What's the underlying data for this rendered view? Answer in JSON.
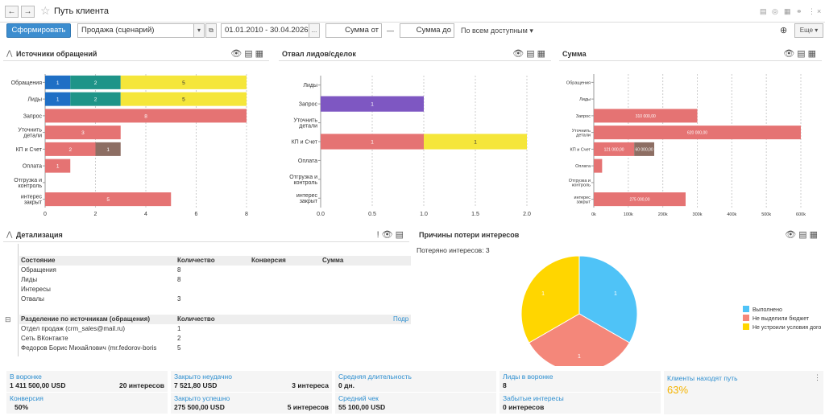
{
  "window": {
    "title": "Путь клиента",
    "back": "←",
    "fwd": "→"
  },
  "toolbar": {
    "form_button": "Сформировать",
    "scenario": "Продажа (сценарий)",
    "period": "01.01.2010 - 30.04.2026",
    "period_btn": "...",
    "sum_from": "Сумма от",
    "dash": "—",
    "sum_to": "Сумма до",
    "access": "По всем доступным ▾",
    "more": "Еще ▾"
  },
  "panels": {
    "sources": "Источники обращений",
    "dropoff": "Отвал лидов/сделок",
    "sum": "Сумма",
    "details": "Детализация",
    "reasons": "Причины потери интересов"
  },
  "chart_data": [
    {
      "type": "bar",
      "orientation": "horizontal",
      "stacked": true,
      "title": "Источники обращений",
      "categories": [
        "Обращения",
        "Лиды",
        "Запрос",
        "Уточнить детали",
        "КП и Счет",
        "Оплата",
        "Отгрузка и контроль",
        "интерес закрыт"
      ],
      "series": [
        {
          "color": "#1f6fc5",
          "values": [
            1,
            1,
            0,
            0,
            0,
            0,
            0,
            0
          ]
        },
        {
          "color": "#1e9488",
          "values": [
            2,
            2,
            0,
            0,
            0,
            0,
            0,
            0
          ]
        },
        {
          "color": "#f5e63a",
          "values": [
            5,
            5,
            0,
            0,
            0,
            0,
            0,
            0
          ]
        },
        {
          "color": "#e57373",
          "values": [
            0,
            0,
            8,
            3,
            2,
            1,
            0,
            5
          ]
        },
        {
          "color": "#8d6e63",
          "values": [
            0,
            0,
            0,
            0,
            1,
            0,
            0,
            0
          ]
        }
      ],
      "xlim": [
        0,
        8
      ],
      "xticks": [
        "0",
        "2",
        "4",
        "6",
        "8"
      ]
    },
    {
      "type": "bar",
      "orientation": "horizontal",
      "stacked": true,
      "title": "Отвал лидов/сделок",
      "categories": [
        "Лиды",
        "Запрос",
        "Уточнить детали",
        "КП и Счет",
        "Оплата",
        "Отгрузка и контроль",
        "интерес закрыт"
      ],
      "series": [
        {
          "color": "#7e57c2",
          "values": [
            0,
            1,
            0,
            0,
            0,
            0,
            0
          ]
        },
        {
          "color": "#e57373",
          "values": [
            0,
            0,
            0,
            1,
            0,
            0,
            0
          ]
        },
        {
          "color": "#f5e63a",
          "values": [
            0,
            0,
            0,
            1,
            0,
            0,
            0
          ]
        }
      ],
      "xlim": [
        0,
        2
      ],
      "xticks": [
        "0.0",
        "0.5",
        "1.0",
        "1.5",
        "2.0"
      ]
    },
    {
      "type": "bar",
      "orientation": "horizontal",
      "stacked": true,
      "title": "Сумма",
      "categories": [
        "Обращения",
        "Лиды",
        "Запрос",
        "Уточнить детали",
        "КП и Счет",
        "Оплата",
        "Отгрузка и контроль",
        "интерес закрыт"
      ],
      "series": [
        {
          "color": "#e57373",
          "values": [
            0,
            0,
            310000,
            620000,
            121000,
            25000,
            0,
            275000
          ],
          "labels": [
            "",
            "",
            "310 000,00",
            "620 000,00",
            "121 000,00",
            "",
            "",
            "275 000,00"
          ]
        },
        {
          "color": "#8d6e63",
          "values": [
            0,
            0,
            0,
            0,
            60000,
            0,
            0,
            0
          ],
          "labels": [
            "",
            "",
            "",
            "",
            "60 000,00",
            "",
            "",
            ""
          ]
        }
      ],
      "xlim": [
        0,
        620000
      ],
      "xticks": [
        "0k",
        "100k",
        "200k",
        "300k",
        "400k",
        "500k",
        "600k"
      ]
    },
    {
      "type": "pie",
      "title": "Причины потери интересов",
      "slices": [
        {
          "label": "Выполнено",
          "value": 1,
          "color": "#4fc3f7"
        },
        {
          "label": "Не выделили бюджет",
          "value": 1,
          "color": "#f4877a"
        },
        {
          "label": "Не устроили условия дого",
          "value": 1,
          "color": "#ffd600"
        }
      ]
    }
  ],
  "details": {
    "header": [
      "Состояние",
      "Количество",
      "Конверсия",
      "Сумма"
    ],
    "rows": [
      [
        "Обращения",
        "8"
      ],
      [
        "Лиды",
        "8"
      ],
      [
        "Интересы",
        ""
      ],
      [
        "Отвалы",
        "3"
      ]
    ],
    "header2": [
      "Разделение по источникам (обращения)",
      "Количество"
    ],
    "link": "Подр",
    "rows2": [
      [
        "Отдел продаж (crm_sales@mail.ru)",
        "1"
      ],
      [
        "Сеть ВКонтакте",
        "2"
      ],
      [
        "Федоров Борис Михайлович (mr.fedorov-boris",
        "5"
      ]
    ]
  },
  "reasons": {
    "lost": "Потеряно интересов: 3",
    "pie_labels": [
      "1",
      "1",
      "1"
    ]
  },
  "kpis": [
    {
      "label": "В воронке",
      "value": "1 411 500,00 USD",
      "sub": "20 интересов"
    },
    {
      "label": "Закрыто неудачно",
      "value": "7 521,80 USD",
      "sub": "3 интереса"
    },
    {
      "label": "Средняя длительность",
      "value": "0 дн.",
      "sub": ""
    },
    {
      "label": "Лиды в воронке",
      "value": "8",
      "sub": ""
    },
    {
      "label": "Конверсия",
      "value": "50%",
      "sub": ""
    },
    {
      "label": "Закрыто успешно",
      "value": "275 500,00 USD",
      "sub": "5 интересов"
    },
    {
      "label": "Средний чек",
      "value": "55 100,00 USD",
      "sub": ""
    },
    {
      "label": "Забытые интересы",
      "value": "0 интересов",
      "sub": ""
    }
  ],
  "path_kpi": {
    "label": "Клиенты находят путь",
    "value": "63%",
    "color": "#f5b400"
  }
}
